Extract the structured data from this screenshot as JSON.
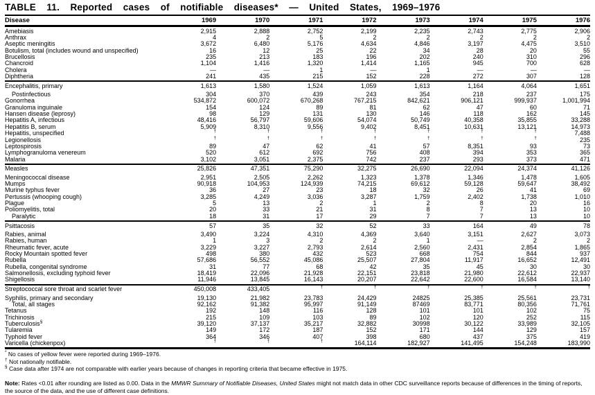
{
  "title": "TABLE 11. Reported cases of notifiable diseases* — United States, 1969–1976",
  "table": {
    "disease_header": "Disease",
    "year_headers": [
      "1969",
      "1970",
      "1971",
      "1972",
      "1973",
      "1974",
      "1975",
      "1976"
    ],
    "sections": [
      {
        "rows": [
          {
            "name": "Amebiasis",
            "indent": false,
            "values": [
              "2,915",
              "2,888",
              "2,752",
              "2,199",
              "2,235",
              "2,743",
              "2,775",
              "2,906"
            ]
          },
          {
            "name": "Anthrax",
            "indent": false,
            "values": [
              "4",
              "2",
              "5",
              "2",
              "2",
              "2",
              "2",
              "2"
            ]
          },
          {
            "name": "Aseptic meningitis",
            "indent": false,
            "values": [
              "3,672",
              "6,480",
              "5,176",
              "4,634",
              "4,846",
              "3,197",
              "4,475",
              "3,510"
            ]
          },
          {
            "name": "Botulism, total (includes wound and unspecified)",
            "indent": false,
            "values": [
              "16",
              "12",
              "25",
              "22",
              "34",
              "28",
              "20",
              "55"
            ]
          },
          {
            "name": "Brucellosis",
            "indent": false,
            "values": [
              "235",
              "213",
              "183",
              "196",
              "202",
              "240",
              "310",
              "296"
            ]
          },
          {
            "name": "Chancroid",
            "indent": false,
            "values": [
              "1,104",
              "1,416",
              "1,320",
              "1,414",
              "1,165",
              "945",
              "700",
              "628"
            ]
          },
          {
            "name": "Cholera",
            "indent": false,
            "values": [
              "—",
              "—",
              "1",
              "—",
              "1",
              "—",
              "—",
              "—"
            ]
          },
          {
            "name": "Diphtheria",
            "indent": false,
            "values": [
              "241",
              "435",
              "215",
              "152",
              "228",
              "272",
              "307",
              "128"
            ]
          }
        ]
      },
      {
        "rows": [
          {
            "name": "Encephalitis, primary",
            "indent": false,
            "values": [
              "1,613",
              "1,580",
              "1,524",
              "1,059",
              "1,613",
              "1,164",
              "4,064",
              "1,651"
            ]
          },
          {
            "name": "Postinfectious",
            "indent": true,
            "values": [
              "304",
              "370",
              "439",
              "243",
              "354",
              "218",
              "237",
              "175"
            ]
          },
          {
            "name": "Gonorrhea",
            "indent": false,
            "values": [
              "534,872",
              "600,072",
              "670,268",
              "767,215",
              "842,621",
              "906,121",
              "999,937",
              "1,001,994"
            ]
          },
          {
            "name": "Granuloma inguinale",
            "indent": false,
            "values": [
              "154",
              "124",
              "89",
              "81",
              "62",
              "47",
              "60",
              "71"
            ]
          },
          {
            "name": "Hansen disease (leprosy)",
            "indent": false,
            "values": [
              "98",
              "129",
              "131",
              "130",
              "146",
              "118",
              "162",
              "145"
            ]
          },
          {
            "name": "Hepatitis A, infectious",
            "indent": false,
            "values": [
              "48,416",
              "56,797",
              "59,606",
              "54,074",
              "50,749",
              "40,358",
              "35,855",
              "33,288"
            ]
          },
          {
            "name": "Hepatitis B, serum",
            "indent": false,
            "values": [
              "5,909",
              "8,310",
              "9,556",
              "9,402",
              "8,451",
              "10,631",
              "13,121",
              "14,973"
            ]
          },
          {
            "name": "Hepatitis, unspecified",
            "indent": false,
            "values": [
              "†",
              "†",
              "†",
              "†",
              "†",
              "†",
              "†",
              "7,488"
            ]
          },
          {
            "name": "Legionellosis",
            "indent": false,
            "values": [
              "†",
              "†",
              "†",
              "†",
              "†",
              "†",
              "†",
              "235"
            ]
          },
          {
            "name": "Leptospirosis",
            "indent": false,
            "values": [
              "89",
              "47",
              "62",
              "41",
              "57",
              "8,351",
              "93",
              "73"
            ]
          },
          {
            "name": "Lymphogranuloma venereum",
            "indent": false,
            "values": [
              "520",
              "612",
              "692",
              "756",
              "408",
              "394",
              "353",
              "365"
            ]
          },
          {
            "name": "Malaria",
            "indent": false,
            "values": [
              "3,102",
              "3,051",
              "2,375",
              "742",
              "237",
              "293",
              "373",
              "471"
            ]
          }
        ]
      },
      {
        "rows": [
          {
            "name": "Measles",
            "indent": false,
            "values": [
              "25,826",
              "47,351",
              "75,290",
              "32,275",
              "26,690",
              "22,094",
              "24,374",
              "41,126"
            ]
          },
          {
            "name": "Meningococcal disease",
            "indent": false,
            "values": [
              "2,951",
              "2,505",
              "2,262",
              "1,323",
              "1,378",
              "1,346",
              "1,478",
              "1,605"
            ]
          },
          {
            "name": "Mumps",
            "indent": false,
            "values": [
              "90,918",
              "104,953",
              "124,939",
              "74,215",
              "69,612",
              "59,128",
              "59,647",
              "38,492"
            ]
          },
          {
            "name": "Murine typhus fever",
            "indent": false,
            "values": [
              "36",
              "27",
              "23",
              "18",
              "32",
              "26",
              "41",
              "69"
            ]
          },
          {
            "name": "Pertussis (whooping cough)",
            "indent": false,
            "values": [
              "3,285",
              "4,249",
              "3,036",
              "3,287",
              "1,759",
              "2,402",
              "1,738",
              "1,010"
            ]
          },
          {
            "name": "Plague",
            "indent": false,
            "values": [
              "5",
              "13",
              "2",
              "1",
              "2",
              "8",
              "20",
              "16"
            ]
          },
          {
            "name": "Poliomyelitis, total",
            "indent": false,
            "values": [
              "20",
              "33",
              "21",
              "31",
              "8",
              "7",
              "13",
              "10"
            ]
          },
          {
            "name": "Paralytic",
            "indent": true,
            "values": [
              "18",
              "31",
              "17",
              "29",
              "7",
              "7",
              "13",
              "10"
            ]
          }
        ]
      },
      {
        "rows": [
          {
            "name": "Psittacosis",
            "indent": false,
            "values": [
              "57",
              "35",
              "32",
              "52",
              "33",
              "164",
              "49",
              "78"
            ]
          },
          {
            "name": "Rabies, animal",
            "indent": false,
            "values": [
              "3,490",
              "3,224",
              "4,310",
              "4,369",
              "3,640",
              "3,151",
              "2,627",
              "3,073"
            ]
          },
          {
            "name": "Rabies, human",
            "indent": false,
            "values": [
              "1",
              "3",
              "2",
              "2",
              "1",
              "—",
              "2",
              "2"
            ]
          },
          {
            "name": "Rheumatic fever, acute",
            "indent": false,
            "values": [
              "3,229",
              "3,227",
              "2,793",
              "2,614",
              "2,560",
              "2,431",
              "2,854",
              "1,865"
            ]
          },
          {
            "name": "Rocky Mountain spotted fever",
            "indent": false,
            "values": [
              "498",
              "380",
              "432",
              "523",
              "668",
              "754",
              "844",
              "937"
            ]
          },
          {
            "name": "Rubella",
            "indent": false,
            "values": [
              "57,686",
              "56,552",
              "45,086",
              "25,507",
              "27,804",
              "11,917",
              "16,652",
              "12,491"
            ]
          },
          {
            "name": "Rubella, congenital syndrome",
            "indent": false,
            "values": [
              "31",
              "77",
              "68",
              "42",
              "35",
              "45",
              "30",
              "30"
            ]
          },
          {
            "name": "Salmonellosis, excluding typhoid fever",
            "indent": false,
            "values": [
              "18,419",
              "22,096",
              "21,928",
              "22,151",
              "23,818",
              "21,980",
              "22,612",
              "22,937"
            ]
          },
          {
            "name": "Shigellosis",
            "indent": false,
            "values": [
              "11,946",
              "13,845",
              "16,143",
              "20,207",
              "22,642",
              "22,600",
              "16,584",
              "13,140"
            ]
          }
        ]
      },
      {
        "rows": [
          {
            "name": "Streptococcal sore throat and scarlet fever",
            "indent": false,
            "values": [
              "450,008",
              "433,405",
              "†",
              "†",
              "†",
              "†",
              "†",
              "†"
            ]
          },
          {
            "name": "Syphilis, primary and secondary",
            "indent": false,
            "values": [
              "19,130",
              "21,982",
              "23,783",
              "24,429",
              "24825",
              "25,385",
              "25,561",
              "23,731"
            ]
          },
          {
            "name": "Total, all stages",
            "indent": true,
            "values": [
              "92,162",
              "91,382",
              "95,997",
              "91,149",
              "87469",
              "83,771",
              "80,356",
              "71,761"
            ]
          },
          {
            "name": "Tetanus",
            "indent": false,
            "values": [
              "192",
              "148",
              "116",
              "128",
              "101",
              "101",
              "102",
              "75"
            ]
          },
          {
            "name": "Trichinosis",
            "indent": false,
            "values": [
              "215",
              "109",
              "103",
              "89",
              "102",
              "120",
              "252",
              "115"
            ]
          },
          {
            "name": "Tuberculosis",
            "sup": "§",
            "indent": false,
            "values": [
              "39,120",
              "37,137",
              "35,217",
              "32,882",
              "30998",
              "30,122",
              "33,989",
              "32,105"
            ]
          },
          {
            "name": "Tularemia",
            "indent": false,
            "values": [
              "149",
              "172",
              "187",
              "152",
              "171",
              "144",
              "129",
              "157"
            ]
          },
          {
            "name": "Typhoid fever",
            "indent": false,
            "values": [
              "364",
              "346",
              "407",
              "398",
              "680",
              "437",
              "375",
              "419"
            ]
          },
          {
            "name": "Varicella (chickenpox)",
            "indent": false,
            "values": [
              "†",
              "†",
              "†",
              "164,114",
              "182,927",
              "141,495",
              "154,248",
              "183,990"
            ]
          }
        ]
      }
    ]
  },
  "footnotes": [
    {
      "marker": "*",
      "text": "No cases of yellow fever were reported during 1969–1976."
    },
    {
      "marker": "†",
      "text": "Not nationally notifiable."
    },
    {
      "marker": "§",
      "text": "Case data after 1974 are not comparable with earlier years because of changes in reporting criteria that became effective in 1975."
    }
  ],
  "note": {
    "segments": [
      {
        "text": "Note: ",
        "bold": true
      },
      {
        "text": "Rates <0.01 after rounding are listed as 0.00. Data in the "
      },
      {
        "text": "MMWR Summary of Notifiable Diseases, United States",
        "italic": true
      },
      {
        "text": " might not match data in other CDC surveillance reports because of differences in the timing of reports, the source of the data, and the use of different case definitions."
      }
    ]
  }
}
